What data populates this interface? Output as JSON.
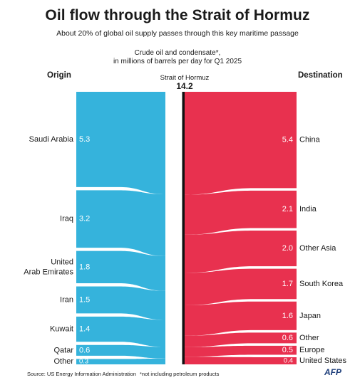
{
  "title": "Oil flow through the Strait of Hormuz",
  "subtitle": "About 20% of global oil supply passes through this key maritime passage",
  "unit_line1": "Crude oil and condensate*,",
  "unit_line2": "in millions of barrels per day for Q1 2025",
  "origin_header": "Origin",
  "destination_header": "Destination",
  "hub_label": "Strait of Hormuz",
  "hub_value": "14.2",
  "source": "Source: US Energy Information Administration",
  "note": "*not including petroleum products",
  "agency": "AFP",
  "colors": {
    "origin_flow": "#35b3dc",
    "destination_flow": "#e8314f",
    "strait_bar": "#111111",
    "value_text": "#ffffff"
  },
  "chart_data": {
    "type": "sankey",
    "total": 14.2,
    "units": "millions of barrels per day",
    "period": "Q1 2025",
    "origins": [
      {
        "name": "Saudi Arabia",
        "value": 5.3
      },
      {
        "name": "Iraq",
        "value": 3.2
      },
      {
        "name": "United Arab Emirates",
        "value": 1.8
      },
      {
        "name": "Iran",
        "value": 1.5
      },
      {
        "name": "Kuwait",
        "value": 1.4
      },
      {
        "name": "Qatar",
        "value": 0.6
      },
      {
        "name": "Other",
        "value": 0.3
      }
    ],
    "destinations": [
      {
        "name": "China",
        "value": 5.4
      },
      {
        "name": "India",
        "value": 2.1
      },
      {
        "name": "Other Asia",
        "value": 2.0
      },
      {
        "name": "South Korea",
        "value": 1.7
      },
      {
        "name": "Japan",
        "value": 1.6
      },
      {
        "name": "Other",
        "value": 0.6
      },
      {
        "name": "Europe",
        "value": 0.5
      },
      {
        "name": "United States",
        "value": 0.4
      }
    ]
  }
}
